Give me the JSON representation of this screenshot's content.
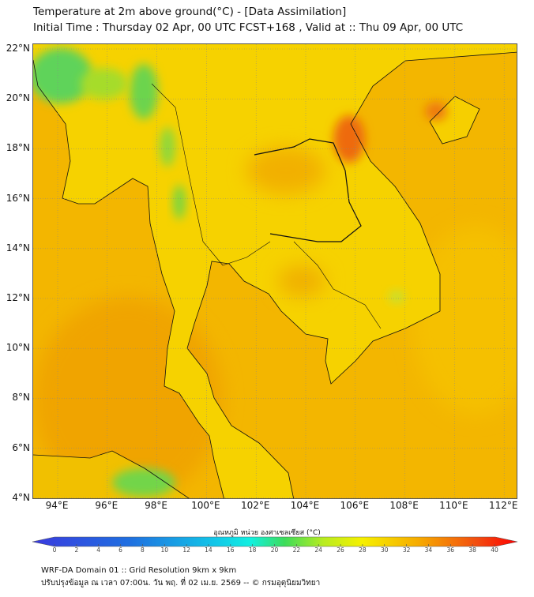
{
  "header": {
    "title": "Temperature at 2m above ground(°C) - [Data Assimilation]",
    "subtitle": "Initial Time : Thursday 02 Apr, 00 UTC FCST+168 , Valid at :: Thu 09 Apr, 00 UTC"
  },
  "map": {
    "lat_labels": [
      "22°N",
      "20°N",
      "18°N",
      "16°N",
      "14°N",
      "12°N",
      "10°N",
      "8°N",
      "6°N",
      "4°N"
    ],
    "lon_labels": [
      "94°E",
      "96°E",
      "98°E",
      "100°E",
      "102°E",
      "104°E",
      "106°E",
      "108°E",
      "110°E",
      "112°E"
    ],
    "colors": {
      "land": "#f6d200",
      "sea": "#f3b600",
      "green": "#5fd35a",
      "hot": "#ee6a10"
    }
  },
  "colorbar": {
    "label": "อุณหภูมิ หน่วย องศาเซลเซียส (°C)",
    "ticks": [
      "0",
      "2",
      "4",
      "6",
      "8",
      "10",
      "12",
      "14",
      "16",
      "18",
      "20",
      "22",
      "24",
      "26",
      "28",
      "30",
      "32",
      "34",
      "36",
      "38",
      "40"
    ],
    "range": [
      0,
      40
    ]
  },
  "footer": {
    "line1": "WRF-DA Domain 01 :: Grid Resolution 9km x 9km",
    "line2": "ปรับปรุงข้อมูล ณ เวลา 07:00น. วัน พฤ. ที่ 02 เม.ย. 2569 -- © กรมอุตุนิยมวิทยา"
  }
}
